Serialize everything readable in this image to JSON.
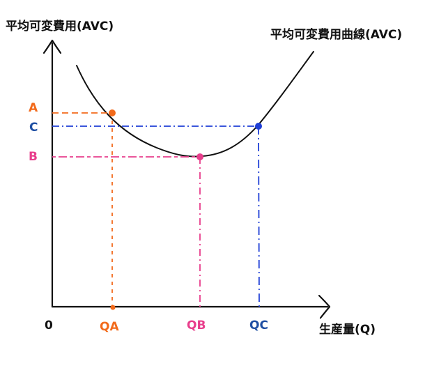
{
  "diagram": {
    "y_axis_title": "平均可変費用(AVC)",
    "x_axis_title": "生産量(Q)",
    "curve_title": "平均可変費用曲線(AVC)",
    "origin_label": "0",
    "points": [
      {
        "name": "A",
        "x_label": "QA",
        "y_label": "A",
        "color": "#f26a1b"
      },
      {
        "name": "B",
        "x_label": "QB",
        "y_label": "B",
        "color": "#e83e8c"
      },
      {
        "name": "C",
        "x_label": "QC",
        "y_label": "C",
        "color": "#1f3fd6"
      }
    ],
    "colors": {
      "axis": "#111111",
      "curve": "#111111",
      "label_C": "#1f4fa3"
    }
  }
}
